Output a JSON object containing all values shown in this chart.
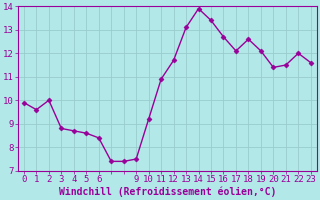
{
  "x": [
    0,
    1,
    2,
    3,
    4,
    5,
    6,
    7,
    8,
    9,
    10,
    11,
    12,
    13,
    14,
    15,
    16,
    17,
    18,
    19,
    20,
    21,
    22,
    23
  ],
  "y": [
    9.9,
    9.6,
    10.0,
    8.8,
    8.7,
    8.6,
    8.4,
    7.4,
    7.4,
    7.5,
    9.2,
    10.9,
    11.7,
    13.1,
    13.9,
    13.4,
    12.7,
    12.1,
    12.6,
    12.1,
    11.4,
    11.5,
    12.0,
    11.6
  ],
  "line_color": "#990099",
  "marker": "D",
  "markersize": 2.5,
  "linewidth": 1.0,
  "bg_color": "#b3e8e8",
  "grid_color": "#99cccc",
  "xlabel": "Windchill (Refroidissement éolien,°C)",
  "xlabel_color": "#990099",
  "xlabel_fontsize": 7,
  "tick_color": "#990099",
  "tick_fontsize": 6.5,
  "ylim": [
    7,
    14
  ],
  "xlim": [
    -0.5,
    23.5
  ],
  "yticks": [
    7,
    8,
    9,
    10,
    11,
    12,
    13,
    14
  ],
  "xtick_labels": [
    "0",
    "1",
    "2",
    "3",
    "4",
    "5",
    "6",
    "",
    "",
    "9",
    "10",
    "11",
    "12",
    "13",
    "14",
    "15",
    "16",
    "17",
    "18",
    "19",
    "20",
    "21",
    "22",
    "23"
  ],
  "xtick_positions": [
    0,
    1,
    2,
    3,
    4,
    5,
    6,
    7,
    8,
    9,
    10,
    11,
    12,
    13,
    14,
    15,
    16,
    17,
    18,
    19,
    20,
    21,
    22,
    23
  ]
}
